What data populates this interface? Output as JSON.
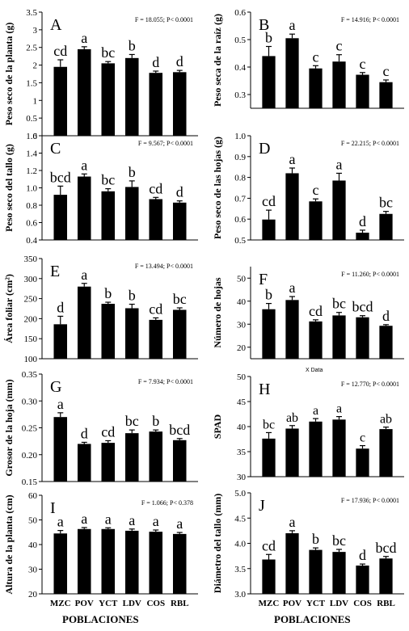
{
  "populations_label": "POBLACIONES",
  "stray_label": "X Data",
  "chart_data": [
    {
      "type": "bar",
      "panel": "A",
      "ylabel": "Peso seco de la planta (g)",
      "stat": "F = 18.055; P< 0.0001",
      "ylim": [
        0,
        3.5
      ],
      "yticks": [
        "0",
        "0.5",
        "1",
        "1.5",
        "2",
        "2.5",
        "3",
        "3.5"
      ],
      "categories": [
        "MZC",
        "POV",
        "YCT",
        "LDV",
        "COS",
        "RBL"
      ],
      "values": [
        1.95,
        2.45,
        2.05,
        2.2,
        1.78,
        1.8
      ],
      "errors": [
        0.2,
        0.07,
        0.05,
        0.1,
        0.05,
        0.05
      ],
      "letters": [
        "cd",
        "a",
        "bc",
        "b",
        "d",
        "d"
      ],
      "show_xticklabels": false
    },
    {
      "type": "bar",
      "panel": "B",
      "ylabel": "Peso seca de la raíz (g)",
      "stat": "F = 14.916; P< 0.0001",
      "ylim": [
        0.25,
        0.6
      ],
      "yticks": [
        "0.3",
        "0.4",
        "0.5",
        "0.6"
      ],
      "categories": [
        "MZC",
        "POV",
        "YCT",
        "LDV",
        "COS",
        "RBL"
      ],
      "values": [
        0.44,
        0.505,
        0.395,
        0.42,
        0.372,
        0.345
      ],
      "errors": [
        0.035,
        0.015,
        0.01,
        0.025,
        0.008,
        0.008
      ],
      "letters": [
        "b",
        "a",
        "c",
        "c",
        "c",
        "c"
      ],
      "show_xticklabels": false
    },
    {
      "type": "bar",
      "panel": "C",
      "ylabel": "Peso seco del tallo (g)",
      "stat": "F = 9.567; P< 0.0001",
      "ylim": [
        0.4,
        1.6
      ],
      "yticks": [
        "0.4",
        "0.6",
        "0.8",
        "1.0",
        "1.2",
        "1.4",
        "1.6"
      ],
      "categories": [
        "MZC",
        "POV",
        "YCT",
        "LDV",
        "COS",
        "RBL"
      ],
      "values": [
        0.92,
        1.13,
        0.96,
        1.01,
        0.87,
        0.83
      ],
      "errors": [
        0.1,
        0.03,
        0.03,
        0.07,
        0.02,
        0.02
      ],
      "letters": [
        "bcd",
        "a",
        "bc",
        "b",
        "cd",
        "d"
      ],
      "show_xticklabels": false
    },
    {
      "type": "bar",
      "panel": "D",
      "ylabel": "Peso seco de las hojas (g)",
      "stat": "F = 22.215; P< 0.0001",
      "ylim": [
        0.5,
        1.0
      ],
      "yticks": [
        "0.5",
        "0.6",
        "0.7",
        "0.8",
        "0.9",
        "1.0"
      ],
      "categories": [
        "MZC",
        "POV",
        "YCT",
        "LDV",
        "COS",
        "RBL"
      ],
      "values": [
        0.598,
        0.82,
        0.685,
        0.785,
        0.535,
        0.625
      ],
      "errors": [
        0.045,
        0.025,
        0.012,
        0.035,
        0.012,
        0.012
      ],
      "letters": [
        "cd",
        "a",
        "c",
        "a",
        "d",
        "bc"
      ],
      "show_xticklabels": false
    },
    {
      "type": "bar",
      "panel": "E",
      "ylabel": "Área foliar (cm²)",
      "stat": "F = 13.494; P< 0.0001",
      "ylim": [
        100,
        350
      ],
      "yticks": [
        "100",
        "150",
        "200",
        "250",
        "300",
        "350"
      ],
      "categories": [
        "MZC",
        "POV",
        "YCT",
        "LDV",
        "COS",
        "RBL"
      ],
      "values": [
        186,
        280,
        237,
        226,
        197,
        222
      ],
      "errors": [
        20,
        8,
        4,
        10,
        5,
        5
      ],
      "letters": [
        "d",
        "a",
        "b",
        "b",
        "cd",
        "bc"
      ],
      "show_xticklabels": false
    },
    {
      "type": "bar",
      "panel": "F",
      "ylabel": "Número de hojas",
      "stat": "F = 11.260; P< 0.0001",
      "ylim": [
        15,
        55
      ],
      "yticks": [
        "20",
        "30",
        "40",
        "50"
      ],
      "categories": [
        "MZC",
        "POV",
        "YCT",
        "LDV",
        "COS",
        "RBL"
      ],
      "values": [
        36.5,
        40.5,
        31.2,
        33.8,
        33.0,
        29.3
      ],
      "errors": [
        2.5,
        1.5,
        0.7,
        1.3,
        0.7,
        0.5
      ],
      "letters": [
        "b",
        "a",
        "cd",
        "bc",
        "bcd",
        "d"
      ],
      "show_xticklabels": false
    },
    {
      "type": "bar",
      "panel": "G",
      "ylabel": "Grosor de la hoja (mm)",
      "stat": "F = 7.934; P< 0.0001",
      "ylim": [
        0.15,
        0.35
      ],
      "yticks": [
        "0.15",
        "0.20",
        "0.25",
        "0.30",
        "0.35"
      ],
      "categories": [
        "MZC",
        "POV",
        "YCT",
        "LDV",
        "COS",
        "RBL"
      ],
      "values": [
        0.27,
        0.22,
        0.222,
        0.24,
        0.243,
        0.227
      ],
      "errors": [
        0.008,
        0.003,
        0.004,
        0.006,
        0.003,
        0.003
      ],
      "letters": [
        "a",
        "d",
        "cd",
        "bc",
        "b",
        "bcd"
      ],
      "show_xticklabels": false
    },
    {
      "type": "bar",
      "panel": "H",
      "ylabel": "SPAD",
      "stat": "F = 12.770; P< 0.0001",
      "ylim": [
        30,
        50
      ],
      "yticks": [
        "30",
        "35",
        "40",
        "45",
        "50"
      ],
      "categories": [
        "MZC",
        "POV",
        "YCT",
        "LDV",
        "COS",
        "RBL"
      ],
      "values": [
        37.6,
        39.6,
        41.0,
        41.4,
        35.6,
        39.5
      ],
      "errors": [
        1.2,
        0.6,
        0.6,
        0.6,
        0.6,
        0.4
      ],
      "letters": [
        "bc",
        "ab",
        "a",
        "a",
        "c",
        "ab"
      ],
      "show_xticklabels": false
    },
    {
      "type": "bar",
      "panel": "I",
      "ylabel": "Altura de la planta (cm)",
      "stat": "F = 1.066; P< 0.378",
      "ylim": [
        20,
        60
      ],
      "yticks": [
        "20",
        "30",
        "40",
        "50",
        "60"
      ],
      "categories": [
        "MZC",
        "POV",
        "YCT",
        "LDV",
        "COS",
        "RBL"
      ],
      "values": [
        44.5,
        46.3,
        46.3,
        45.6,
        45.2,
        44.3
      ],
      "errors": [
        1.2,
        0.6,
        0.5,
        0.7,
        0.7,
        0.6
      ],
      "letters": [
        "a",
        "a",
        "a",
        "a",
        "a",
        "a"
      ],
      "show_xticklabels": true
    },
    {
      "type": "bar",
      "panel": "J",
      "ylabel": "Diámetro del tallo (mm)",
      "stat": "F = 17.936; P< 0.0001",
      "ylim": [
        3.0,
        5.0
      ],
      "yticks": [
        "3.0",
        "3.5",
        "4.0",
        "4.5",
        "5.0"
      ],
      "categories": [
        "MZC",
        "POV",
        "YCT",
        "LDV",
        "COS",
        "RBL"
      ],
      "values": [
        3.68,
        4.2,
        3.87,
        3.83,
        3.56,
        3.7
      ],
      "errors": [
        0.1,
        0.05,
        0.04,
        0.05,
        0.03,
        0.04
      ],
      "letters": [
        "cd",
        "a",
        "b",
        "bc",
        "d",
        "bcd"
      ],
      "show_xticklabels": true
    }
  ]
}
